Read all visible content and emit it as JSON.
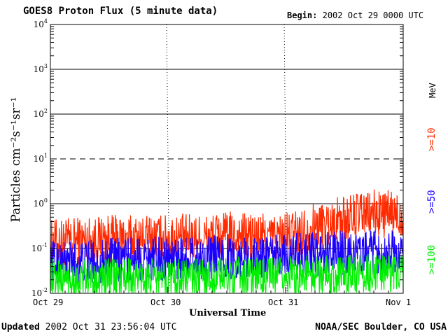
{
  "header": {
    "title": "GOES8 Proton Flux (5 minute data)",
    "begin_label": "Begin:",
    "begin_value": "2002 Oct 29 0000 UTC"
  },
  "footer": {
    "updated_label": "Updated",
    "updated_value": "2002 Oct 31 23:56:04 UTC",
    "credit": "NOAA/SEC Boulder, CO USA"
  },
  "colors": {
    "ge10": "#ff2a00",
    "ge50": "#1a00ff",
    "ge100": "#00ee00",
    "axis": "#000000",
    "background": "#ffffff"
  },
  "chart_data": {
    "type": "line",
    "title": "GOES8 Proton Flux (5 minute data)",
    "xlabel": "Universal Time",
    "ylabel": "Particles cm⁻²s⁻¹sr⁻¹",
    "y_scale": "log",
    "ylim": [
      0.01,
      10000
    ],
    "y_ticks": [
      {
        "base": "10",
        "exp": "4"
      },
      {
        "base": "10",
        "exp": "3"
      },
      {
        "base": "10",
        "exp": "2"
      },
      {
        "base": "10",
        "exp": "1"
      },
      {
        "base": "10",
        "exp": "0"
      },
      {
        "base": "10",
        "exp": "-1"
      },
      {
        "base": "10",
        "exp": "-2"
      }
    ],
    "x_ticks": [
      "Oct 29",
      "Oct 30",
      "Oct 31",
      "Nov 1"
    ],
    "xlim": [
      "2002-10-29 00:00",
      "2002-11-01 00:00"
    ],
    "interval": "5 minute",
    "threshold_lines": [
      {
        "y": 1000,
        "style": "solid"
      },
      {
        "y": 100,
        "style": "solid"
      },
      {
        "y": 10,
        "style": "dashed"
      },
      {
        "y": 1,
        "style": "solid"
      },
      {
        "y": 0.1,
        "style": "solid"
      }
    ],
    "legend_unit": "MeV",
    "legend_position": "right",
    "x": [
      "2002-10-29 00:00",
      "2002-10-29 06:00",
      "2002-10-29 12:00",
      "2002-10-29 18:00",
      "2002-10-30 00:00",
      "2002-10-30 06:00",
      "2002-10-30 12:00",
      "2002-10-30 18:00",
      "2002-10-31 00:00",
      "2002-10-31 06:00",
      "2002-10-31 12:00",
      "2002-10-31 18:00",
      "2002-11-01 00:00"
    ],
    "series": [
      {
        "name": ">=10",
        "color": "#ff2a00",
        "values": [
          0.13,
          0.15,
          0.16,
          0.16,
          0.17,
          0.17,
          0.19,
          0.18,
          0.18,
          0.3,
          0.45,
          0.6,
          0.55
        ]
      },
      {
        "name": ">=50",
        "color": "#1a00ff",
        "values": [
          0.05,
          0.05,
          0.055,
          0.06,
          0.06,
          0.06,
          0.065,
          0.06,
          0.07,
          0.075,
          0.08,
          0.08,
          0.08
        ]
      },
      {
        "name": ">=100",
        "color": "#00ee00",
        "values": [
          0.022,
          0.02,
          0.022,
          0.022,
          0.022,
          0.022,
          0.024,
          0.023,
          0.024,
          0.026,
          0.027,
          0.028,
          0.028
        ]
      }
    ]
  }
}
